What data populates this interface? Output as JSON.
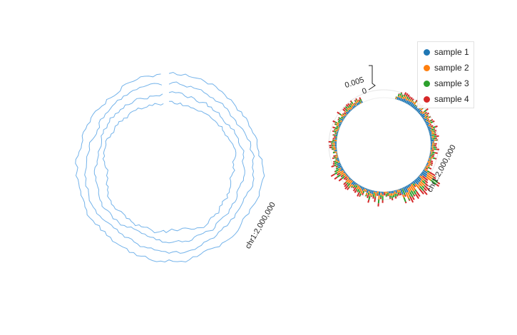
{
  "chart_data": [
    {
      "type": "line",
      "layout": "circular",
      "title": "",
      "track_label": "chr1:2,000,000",
      "series_count": 4,
      "line_color": "#74b3ea",
      "grid": false,
      "legend": false
    },
    {
      "type": "bar",
      "layout": "circular",
      "title": "",
      "track_label": "chr1:2,000,000",
      "radial_axis": {
        "ticks": [
          "0",
          "0.005"
        ]
      },
      "grid": true,
      "legend_position": "top-right",
      "series": [
        {
          "name": "sample 1",
          "color": "#1f77b4"
        },
        {
          "name": "sample 2",
          "color": "#ff7f0e"
        },
        {
          "name": "sample 3",
          "color": "#2ca02c"
        },
        {
          "name": "sample 4",
          "color": "#d62728"
        }
      ]
    }
  ]
}
